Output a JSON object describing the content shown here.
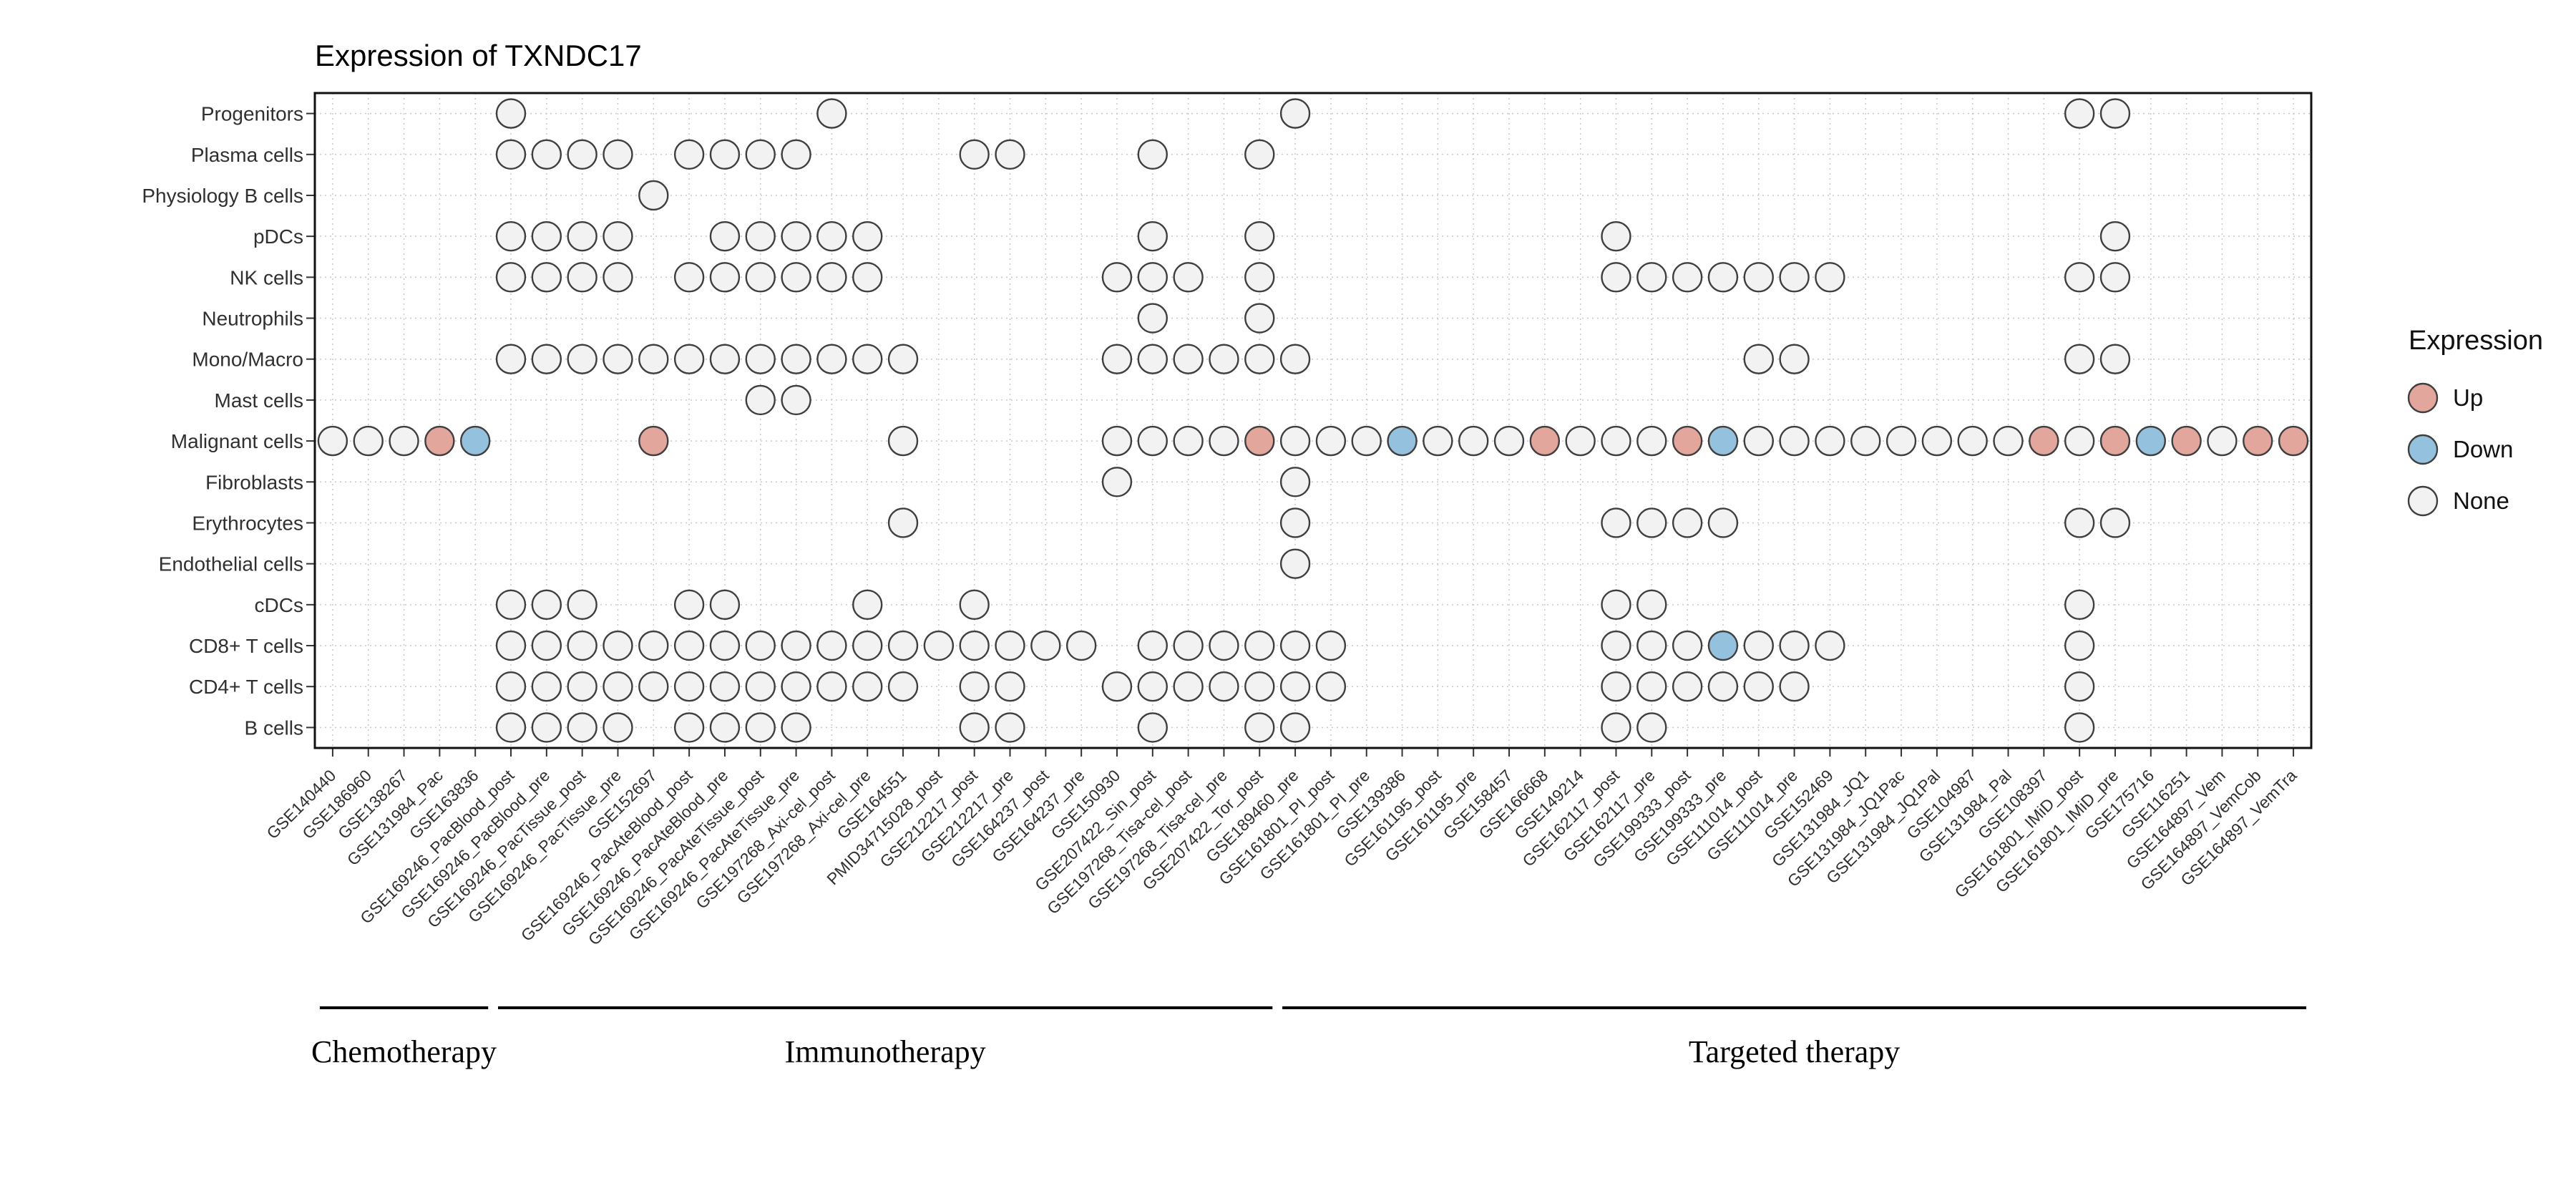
{
  "chart_data": {
    "type": "heatmap",
    "mark": "circle",
    "title": "Expression of TXNDC17",
    "grid": true,
    "legend_position": "right",
    "legend": {
      "title": "Expression",
      "entries": [
        {
          "label": "Up",
          "value": "up",
          "color": "#e2a69c"
        },
        {
          "label": "Down",
          "value": "down",
          "color": "#94c1dd"
        },
        {
          "label": "None",
          "value": "none",
          "color": "#f2f2f2"
        }
      ]
    },
    "y_categories": [
      "Progenitors",
      "Plasma cells",
      "Physiology B cells",
      "pDCs",
      "NK cells",
      "Neutrophils",
      "Mono/Macro",
      "Mast cells",
      "Malignant cells",
      "Fibroblasts",
      "Erythrocytes",
      "Endothelial cells",
      "cDCs",
      "CD8+ T cells",
      "CD4+ T cells",
      "B cells"
    ],
    "x_categories": [
      "GSE140440",
      "GSE186960",
      "GSE138267",
      "GSE131984_Pac",
      "GSE163836",
      "GSE169246_PacBlood_post",
      "GSE169246_PacBlood_pre",
      "GSE169246_PacTissue_post",
      "GSE169246_PacTissue_pre",
      "GSE152697",
      "GSE169246_PacAteBlood_post",
      "GSE169246_PacAteBlood_pre",
      "GSE169246_PacAteTissue_post",
      "GSE169246_PacAteTissue_pre",
      "GSE197268_Axi-cel_post",
      "GSE197268_Axi-cel_pre",
      "GSE164551",
      "PMID34715028_post",
      "GSE212217_post",
      "GSE212217_pre",
      "GSE164237_post",
      "GSE164237_pre",
      "GSE150930",
      "GSE207422_Sin_post",
      "GSE197268_Tisa-cel_post",
      "GSE197268_Tisa-cel_pre",
      "GSE207422_Tor_post",
      "GSE189460_pre",
      "GSE161801_PI_post",
      "GSE161801_PI_pre",
      "GSE139386",
      "GSE161195_post",
      "GSE161195_pre",
      "GSE158457",
      "GSE166668",
      "GSE149214",
      "GSE162117_post",
      "GSE162117_pre",
      "GSE199333_post",
      "GSE199333_pre",
      "GSE111014_post",
      "GSE111014_pre",
      "GSE152469",
      "GSE131984_JQ1",
      "GSE131984_JQ1Pac",
      "GSE131984_JQ1Pal",
      "GSE104987",
      "GSE131984_Pal",
      "GSE108397",
      "GSE161801_IMiD_post",
      "GSE161801_IMiD_pre",
      "GSE175716",
      "GSE116251",
      "GSE164897_Vem",
      "GSE164897_VemCob",
      "GSE164897_VemTra"
    ],
    "x_groups": [
      {
        "label": "Chemotherapy",
        "from": 1,
        "to": 5
      },
      {
        "label": "Immunotherapy",
        "from": 6,
        "to": 27
      },
      {
        "label": "Targeted therapy",
        "from": 28,
        "to": 56
      }
    ],
    "cells": [
      {
        "cell_type": "Progenitors",
        "none": [
          6,
          15,
          28,
          50,
          51
        ],
        "up": [],
        "down": []
      },
      {
        "cell_type": "Plasma cells",
        "none": [
          6,
          7,
          8,
          9,
          11,
          12,
          13,
          14,
          19,
          20,
          24,
          27
        ],
        "up": [],
        "down": []
      },
      {
        "cell_type": "Physiology B cells",
        "none": [
          10
        ],
        "up": [],
        "down": []
      },
      {
        "cell_type": "pDCs",
        "none": [
          6,
          7,
          8,
          9,
          12,
          13,
          14,
          15,
          16,
          24,
          27,
          37,
          51
        ],
        "up": [],
        "down": []
      },
      {
        "cell_type": "NK cells",
        "none": [
          6,
          7,
          8,
          9,
          11,
          12,
          13,
          14,
          15,
          16,
          23,
          24,
          25,
          27,
          37,
          38,
          39,
          40,
          41,
          42,
          43,
          50,
          51
        ],
        "up": [],
        "down": []
      },
      {
        "cell_type": "Neutrophils",
        "none": [
          24,
          27
        ],
        "up": [],
        "down": []
      },
      {
        "cell_type": "Mono/Macro",
        "none": [
          6,
          7,
          8,
          9,
          10,
          11,
          12,
          13,
          14,
          15,
          16,
          17,
          23,
          24,
          25,
          26,
          27,
          28,
          41,
          42,
          50,
          51
        ],
        "up": [],
        "down": []
      },
      {
        "cell_type": "Mast cells",
        "none": [
          13,
          14
        ],
        "up": [],
        "down": []
      },
      {
        "cell_type": "Malignant cells",
        "none": [
          1,
          2,
          3,
          17,
          23,
          24,
          25,
          26,
          28,
          29,
          30,
          32,
          33,
          34,
          36,
          37,
          38,
          41,
          42,
          43,
          44,
          45,
          46,
          47,
          48,
          50,
          54
        ],
        "up": [
          4,
          10,
          27,
          35,
          39,
          49,
          51,
          53,
          55,
          56
        ],
        "down": [
          5,
          31,
          40,
          52
        ]
      },
      {
        "cell_type": "Fibroblasts",
        "none": [
          23,
          28
        ],
        "up": [],
        "down": []
      },
      {
        "cell_type": "Erythrocytes",
        "none": [
          17,
          28,
          37,
          38,
          39,
          40,
          50,
          51
        ],
        "up": [],
        "down": []
      },
      {
        "cell_type": "Endothelial cells",
        "none": [
          28
        ],
        "up": [],
        "down": []
      },
      {
        "cell_type": "cDCs",
        "none": [
          6,
          7,
          8,
          11,
          12,
          16,
          19,
          37,
          38,
          50
        ],
        "up": [],
        "down": []
      },
      {
        "cell_type": "CD8+ T cells",
        "none": [
          6,
          7,
          8,
          9,
          10,
          11,
          12,
          13,
          14,
          15,
          16,
          17,
          18,
          19,
          20,
          21,
          22,
          24,
          25,
          26,
          27,
          28,
          29,
          37,
          38,
          39,
          41,
          42,
          43,
          50
        ],
        "up": [],
        "down": [
          40
        ]
      },
      {
        "cell_type": "CD4+ T cells",
        "none": [
          6,
          7,
          8,
          9,
          10,
          11,
          12,
          13,
          14,
          15,
          16,
          17,
          19,
          20,
          23,
          24,
          25,
          26,
          27,
          28,
          29,
          37,
          38,
          39,
          40,
          41,
          42,
          50
        ],
        "up": [],
        "down": []
      },
      {
        "cell_type": "B cells",
        "none": [
          6,
          7,
          8,
          9,
          11,
          12,
          13,
          14,
          19,
          20,
          24,
          27,
          28,
          37,
          38,
          50
        ],
        "up": [],
        "down": []
      }
    ]
  }
}
